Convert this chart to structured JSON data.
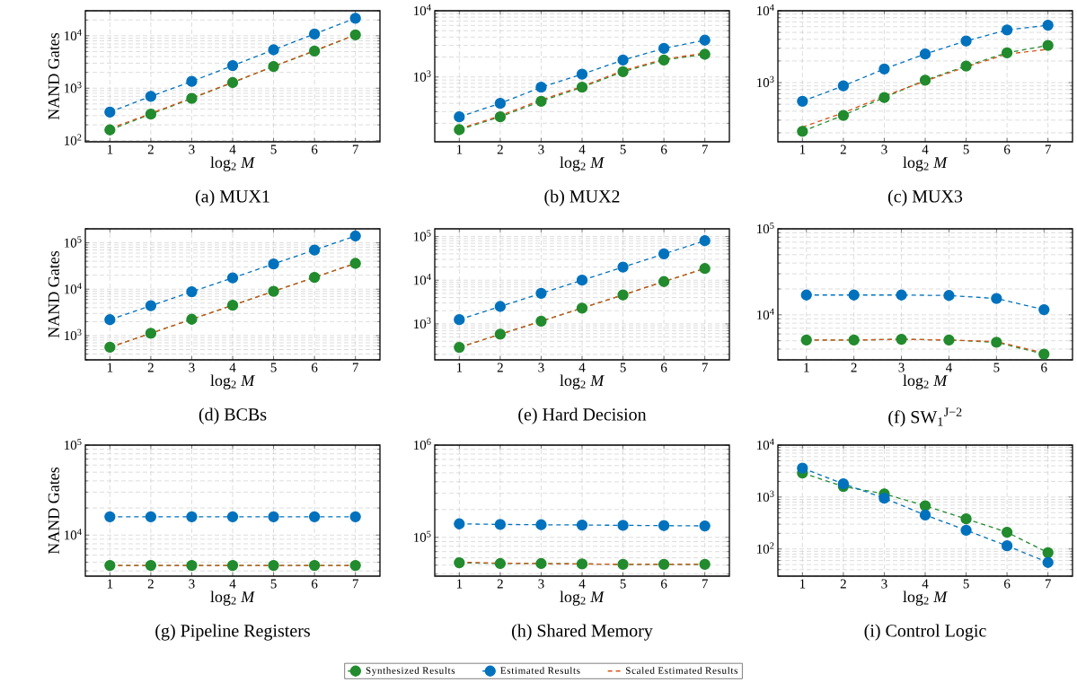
{
  "chart_data": [
    {
      "type": "line",
      "title": "(a) MUX1",
      "xlabel": "log$_{2}$ *M*",
      "ylabel": "NAND Gates",
      "x": [
        1,
        2,
        3,
        4,
        5,
        6,
        7
      ],
      "xlim": [
        0.4,
        7.6
      ],
      "xticks": [
        1,
        2,
        3,
        4,
        5,
        6,
        7
      ],
      "ylim": [
        95,
        30000
      ],
      "yticks": [
        {
          "value": 100,
          "label": "10$^{2}$"
        },
        {
          "value": 1000,
          "label": "10$^{3}$"
        },
        {
          "value": 10000,
          "label": "10$^{4}$"
        }
      ],
      "log": "y",
      "grid": true,
      "line_style": "dashed",
      "series": [
        {
          "color": "#228b2e",
          "marker": "circle",
          "values": [
            160,
            320,
            640,
            1280,
            2600,
            5100,
            10400
          ]
        },
        {
          "color": "#0072bd",
          "marker": "circle",
          "values": [
            350,
            700,
            1350,
            2700,
            5400,
            10800,
            21600
          ]
        },
        {
          "color": "#d95319",
          "marker": "none",
          "values": [
            170,
            330,
            650,
            1300,
            2600,
            5200,
            10400
          ]
        }
      ]
    },
    {
      "type": "line",
      "title": "(b) MUX2",
      "xlabel": "log$_{2}$ *M*",
      "x": [
        1,
        2,
        3,
        4,
        5,
        6,
        7
      ],
      "xlim": [
        0.4,
        7.6
      ],
      "xticks": [
        1,
        2,
        3,
        4,
        5,
        6,
        7
      ],
      "ylim": [
        105,
        10000
      ],
      "yticks": [
        {
          "value": 1000,
          "label": "10$^{3}$"
        },
        {
          "value": 10000,
          "label": "10$^{4}$"
        }
      ],
      "log": "y",
      "grid": true,
      "line_style": "dashed",
      "series": [
        {
          "color": "#228b2e",
          "marker": "circle",
          "values": [
            160,
            250,
            430,
            700,
            1200,
            1800,
            2200
          ]
        },
        {
          "color": "#0072bd",
          "marker": "circle",
          "values": [
            250,
            400,
            700,
            1100,
            1800,
            2700,
            3600
          ]
        },
        {
          "color": "#d95319",
          "marker": "none",
          "values": [
            165,
            260,
            450,
            720,
            1250,
            1850,
            2300
          ]
        }
      ]
    },
    {
      "type": "line",
      "title": "(c) MUX3",
      "xlabel": "log$_{2}$ *M*",
      "x": [
        1,
        2,
        3,
        4,
        5,
        6,
        7
      ],
      "xlim": [
        0.4,
        7.6
      ],
      "xticks": [
        1,
        2,
        3,
        4,
        5,
        6,
        7
      ],
      "ylim": [
        150,
        10000
      ],
      "yticks": [
        {
          "value": 1000,
          "label": "10$^{3}$"
        },
        {
          "value": 10000,
          "label": "10$^{4}$"
        }
      ],
      "log": "y",
      "grid": true,
      "line_style": "dashed",
      "series": [
        {
          "color": "#228b2e",
          "marker": "circle",
          "values": [
            210,
            350,
            620,
            1080,
            1700,
            2600,
            3300
          ]
        },
        {
          "color": "#0072bd",
          "marker": "circle",
          "values": [
            550,
            900,
            1550,
            2500,
            3800,
            5400,
            6300
          ]
        },
        {
          "color": "#d95319",
          "marker": "none",
          "values": [
            240,
            380,
            650,
            1050,
            1650,
            2500,
            2900
          ]
        }
      ]
    },
    {
      "type": "line",
      "title": "(d) BCBs",
      "xlabel": "log$_{2}$ *M*",
      "ylabel": "NAND Gates",
      "x": [
        1,
        2,
        3,
        4,
        5,
        6,
        7
      ],
      "xlim": [
        0.4,
        7.6
      ],
      "xticks": [
        1,
        2,
        3,
        4,
        5,
        6,
        7
      ],
      "ylim": [
        300,
        200000
      ],
      "yticks": [
        {
          "value": 1000,
          "label": "10$^{3}$"
        },
        {
          "value": 10000,
          "label": "10$^{4}$"
        },
        {
          "value": 100000,
          "label": "10$^{5}$"
        }
      ],
      "log": "y",
      "grid": true,
      "line_style": "dashed",
      "series": [
        {
          "color": "#228b2e",
          "marker": "circle",
          "values": [
            560,
            1120,
            2250,
            4500,
            9000,
            18000,
            36000
          ]
        },
        {
          "color": "#0072bd",
          "marker": "circle",
          "values": [
            2200,
            4400,
            8800,
            17500,
            35000,
            70000,
            140000
          ]
        },
        {
          "color": "#d95319",
          "marker": "none",
          "values": [
            560,
            1120,
            2250,
            4500,
            9000,
            18000,
            36000
          ]
        }
      ]
    },
    {
      "type": "line",
      "title": "(e) Hard Decision",
      "xlabel": "log$_{2}$ *M*",
      "x": [
        1,
        2,
        3,
        4,
        5,
        6,
        7
      ],
      "xlim": [
        0.4,
        7.6
      ],
      "xticks": [
        1,
        2,
        3,
        4,
        5,
        6,
        7
      ],
      "ylim": [
        150,
        150000
      ],
      "yticks": [
        {
          "value": 1000,
          "label": "10$^{3}$"
        },
        {
          "value": 10000,
          "label": "10$^{4}$"
        },
        {
          "value": 100000,
          "label": "10$^{5}$"
        }
      ],
      "log": "y",
      "grid": true,
      "line_style": "dashed",
      "series": [
        {
          "color": "#228b2e",
          "marker": "circle",
          "values": [
            290,
            580,
            1150,
            2300,
            4600,
            9300,
            18500
          ]
        },
        {
          "color": "#0072bd",
          "marker": "circle",
          "values": [
            1250,
            2500,
            5000,
            10000,
            20000,
            40000,
            80000
          ]
        },
        {
          "color": "#d95319",
          "marker": "none",
          "values": [
            290,
            580,
            1150,
            2300,
            4600,
            9300,
            18500
          ]
        }
      ]
    },
    {
      "type": "line",
      "title": "(f) SW$_{1}$$^{J−2}$",
      "xlabel": "log$_{2}$ *M*",
      "x": [
        1,
        2,
        3,
        4,
        5,
        6
      ],
      "xlim": [
        0.4,
        6.6
      ],
      "xticks": [
        1,
        2,
        3,
        4,
        5,
        6
      ],
      "ylim": [
        3000,
        100000
      ],
      "yticks": [
        {
          "value": 10000,
          "label": "10$^{4}$"
        },
        {
          "value": 100000,
          "label": "10$^{5}$"
        }
      ],
      "log": "y",
      "grid": true,
      "line_style": "dashed",
      "series": [
        {
          "color": "#228b2e",
          "marker": "circle",
          "values": [
            5100,
            5100,
            5200,
            5100,
            4800,
            3500
          ]
        },
        {
          "color": "#0072bd",
          "marker": "circle",
          "values": [
            17000,
            17000,
            17000,
            16800,
            15500,
            11500
          ]
        },
        {
          "color": "#d95319",
          "marker": "none",
          "values": [
            5100,
            5100,
            5200,
            5100,
            4900,
            3600
          ]
        }
      ]
    },
    {
      "type": "line",
      "title": "(g) Pipeline Registers",
      "xlabel": "log$_{2}$ *M*",
      "ylabel": "NAND Gates",
      "x": [
        1,
        2,
        3,
        4,
        5,
        6,
        7
      ],
      "xlim": [
        0.4,
        7.6
      ],
      "xticks": [
        1,
        2,
        3,
        4,
        5,
        6,
        7
      ],
      "ylim": [
        3500,
        100000
      ],
      "yticks": [
        {
          "value": 10000,
          "label": "10$^{4}$"
        },
        {
          "value": 100000,
          "label": "10$^{5}$"
        }
      ],
      "log": "y",
      "grid": true,
      "line_style": "dashed",
      "series": [
        {
          "color": "#228b2e",
          "marker": "circle",
          "values": [
            4600,
            4600,
            4600,
            4600,
            4600,
            4600,
            4600
          ]
        },
        {
          "color": "#0072bd",
          "marker": "circle",
          "values": [
            16000,
            16000,
            16000,
            16000,
            16000,
            16000,
            16000
          ]
        },
        {
          "color": "#d95319",
          "marker": "none",
          "values": [
            4600,
            4600,
            4600,
            4600,
            4600,
            4600,
            4600
          ]
        }
      ]
    },
    {
      "type": "line",
      "title": "(h) Shared Memory",
      "xlabel": "log$_{2}$ *M*",
      "x": [
        1,
        2,
        3,
        4,
        5,
        6,
        7
      ],
      "xlim": [
        0.4,
        7.6
      ],
      "xticks": [
        1,
        2,
        3,
        4,
        5,
        6,
        7
      ],
      "ylim": [
        38000,
        1000000
      ],
      "yticks": [
        {
          "value": 100000,
          "label": "10$^{5}$"
        },
        {
          "value": 1000000,
          "label": "10$^{6}$"
        }
      ],
      "log": "y",
      "grid": true,
      "line_style": "dashed",
      "legend": "bottom",
      "series": [
        {
          "name": "Synthesized Results",
          "color": "#228b2e",
          "marker": "circle",
          "values": [
            53000,
            52000,
            52000,
            51500,
            51000,
            51000,
            51000
          ]
        },
        {
          "name": "Estimated Results",
          "color": "#0072bd",
          "marker": "circle",
          "values": [
            140000,
            138000,
            137000,
            136000,
            135000,
            134000,
            133000
          ]
        },
        {
          "name": "Scaled Estimated Results",
          "color": "#d95319",
          "marker": "none",
          "values": [
            54000,
            52500,
            52000,
            51500,
            51000,
            51000,
            51000
          ]
        }
      ]
    },
    {
      "type": "line",
      "title": "(i) Control Logic",
      "xlabel": "log$_{2}$ *M*",
      "x": [
        1,
        2,
        3,
        4,
        5,
        6,
        7
      ],
      "xlim": [
        0.4,
        7.6
      ],
      "xticks": [
        1,
        2,
        3,
        4,
        5,
        6,
        7
      ],
      "ylim": [
        30,
        10000
      ],
      "yticks": [
        {
          "value": 100,
          "label": "10$^{2}$"
        },
        {
          "value": 1000,
          "label": "10$^{3}$"
        },
        {
          "value": 10000,
          "label": "10$^{4}$"
        }
      ],
      "log": "y",
      "grid": true,
      "line_style": "dashed",
      "series": [
        {
          "color": "#228b2e",
          "marker": "circle",
          "values": [
            2900,
            1600,
            1150,
            680,
            380,
            210,
            85
          ]
        },
        {
          "color": "#0072bd",
          "marker": "circle",
          "values": [
            3600,
            1800,
            950,
            450,
            230,
            115,
            55
          ]
        }
      ]
    }
  ]
}
